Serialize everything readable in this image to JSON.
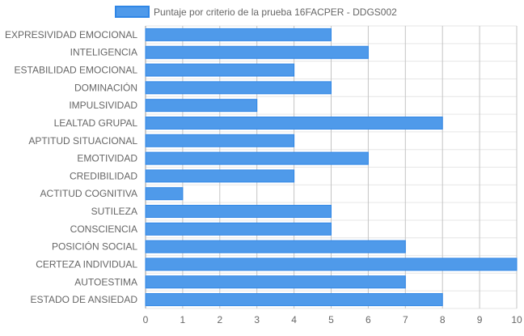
{
  "chart_data": {
    "type": "bar",
    "orientation": "horizontal",
    "categories": [
      "EXPRESIVIDAD EMOCIONAL",
      "INTELIGENCIA",
      "ESTABILIDAD EMOCIONAL",
      "DOMINACIÓN",
      "IMPULSIVIDAD",
      "LEALTAD GRUPAL",
      "APTITUD SITUACIONAL",
      "EMOTIVIDAD",
      "CREDIBILIDAD",
      "ACTITUD COGNITIVA",
      "SUTILEZA",
      "CONSCIENCIA",
      "POSICIÓN SOCIAL",
      "CERTEZA INDIVIDUAL",
      "AUTOESTIMA",
      "ESTADO DE ANSIEDAD"
    ],
    "series": [
      {
        "name": "Puntaje por criterio de la prueba 16FACPER - DDGS002",
        "values": [
          5,
          6,
          4,
          5,
          3,
          8,
          4,
          6,
          4,
          1,
          5,
          5,
          7,
          10,
          7,
          8
        ],
        "color": "#4f9aea",
        "border_color": "#2f86e6"
      }
    ],
    "xlim": [
      0,
      10
    ],
    "x_ticks": [
      "0",
      "1",
      "2",
      "3",
      "4",
      "5",
      "6",
      "7",
      "8",
      "9",
      "10"
    ],
    "grid": true,
    "legend_position": "top"
  }
}
